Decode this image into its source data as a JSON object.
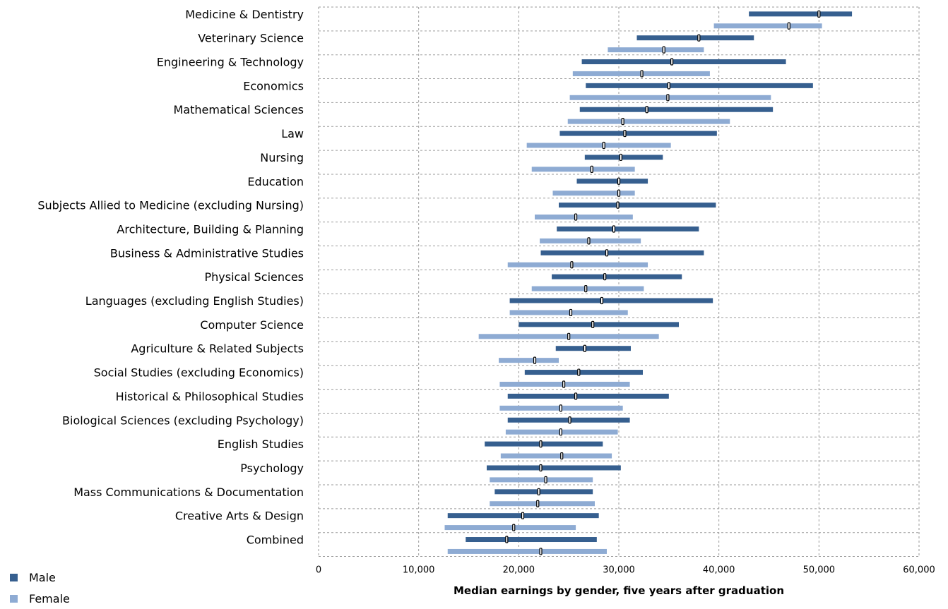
{
  "chart_data": {
    "type": "range-bar",
    "xlabel": "Median earnings by gender, five years after graduation",
    "xlim": [
      0,
      60000
    ],
    "xticks": [
      0,
      10000,
      20000,
      30000,
      40000,
      50000,
      60000
    ],
    "xtick_labels": [
      "0",
      "10,000",
      "20,000",
      "30,000",
      "40,000",
      "50,000",
      "60,000"
    ],
    "grid": true,
    "legend_position": "bottom-left",
    "series": [
      {
        "name": "Male",
        "color": "#365f8f"
      },
      {
        "name": "Female",
        "color": "#8eabd3"
      }
    ],
    "categories": [
      {
        "label": "Medicine & Dentistry",
        "male": {
          "low": 43000,
          "median": 50000,
          "high": 53300
        },
        "female": {
          "low": 39500,
          "median": 47000,
          "high": 50300
        }
      },
      {
        "label": "Veterinary Science",
        "male": {
          "low": 31800,
          "median": 38000,
          "high": 43500
        },
        "female": {
          "low": 28900,
          "median": 34500,
          "high": 38500
        }
      },
      {
        "label": "Engineering & Technology",
        "male": {
          "low": 26300,
          "median": 35300,
          "high": 46700
        },
        "female": {
          "low": 25400,
          "median": 32300,
          "high": 39100
        }
      },
      {
        "label": "Economics",
        "male": {
          "low": 26700,
          "median": 35000,
          "high": 49400
        },
        "female": {
          "low": 25100,
          "median": 34900,
          "high": 45200
        }
      },
      {
        "label": "Mathematical Sciences",
        "male": {
          "low": 26100,
          "median": 32800,
          "high": 45400
        },
        "female": {
          "low": 24900,
          "median": 30400,
          "high": 41100
        }
      },
      {
        "label": "Law",
        "male": {
          "low": 24100,
          "median": 30600,
          "high": 39800
        },
        "female": {
          "low": 20800,
          "median": 28500,
          "high": 35200
        }
      },
      {
        "label": "Nursing",
        "male": {
          "low": 26600,
          "median": 30200,
          "high": 34400
        },
        "female": {
          "low": 21300,
          "median": 27300,
          "high": 31600
        }
      },
      {
        "label": "Education",
        "male": {
          "low": 25800,
          "median": 30000,
          "high": 32900
        },
        "female": {
          "low": 23400,
          "median": 30000,
          "high": 31600
        }
      },
      {
        "label": "Subjects Allied to Medicine (excluding Nursing)",
        "male": {
          "low": 24000,
          "median": 29900,
          "high": 39700
        },
        "female": {
          "low": 21600,
          "median": 25700,
          "high": 31400
        }
      },
      {
        "label": "Architecture, Building & Planning",
        "male": {
          "low": 23800,
          "median": 29500,
          "high": 38000
        },
        "female": {
          "low": 22100,
          "median": 27000,
          "high": 32200
        }
      },
      {
        "label": "Business & Administrative Studies",
        "male": {
          "low": 22200,
          "median": 28800,
          "high": 38500
        },
        "female": {
          "low": 18900,
          "median": 25300,
          "high": 32900
        }
      },
      {
        "label": "Physical Sciences",
        "male": {
          "low": 23300,
          "median": 28600,
          "high": 36300
        },
        "female": {
          "low": 21300,
          "median": 26700,
          "high": 32500
        }
      },
      {
        "label": "Languages (excluding English Studies)",
        "male": {
          "low": 19100,
          "median": 28300,
          "high": 39400
        },
        "female": {
          "low": 19100,
          "median": 25200,
          "high": 30900
        }
      },
      {
        "label": "Computer Science",
        "male": {
          "low": 20000,
          "median": 27400,
          "high": 36000
        },
        "female": {
          "low": 16000,
          "median": 25000,
          "high": 34000
        }
      },
      {
        "label": "Agriculture & Related Subjects",
        "male": {
          "low": 23700,
          "median": 26600,
          "high": 31200
        },
        "female": {
          "low": 18000,
          "median": 21600,
          "high": 24000
        }
      },
      {
        "label": "Social Studies (excluding Economics)",
        "male": {
          "low": 20600,
          "median": 26000,
          "high": 32400
        },
        "female": {
          "low": 18100,
          "median": 24500,
          "high": 31100
        }
      },
      {
        "label": "Historical & Philosophical Studies",
        "male": {
          "low": 18900,
          "median": 25700,
          "high": 35000
        },
        "female": {
          "low": 18100,
          "median": 24200,
          "high": 30400
        }
      },
      {
        "label": "Biological Sciences (excluding Psychology)",
        "male": {
          "low": 18900,
          "median": 25100,
          "high": 31100
        },
        "female": {
          "low": 18700,
          "median": 24200,
          "high": 29900
        }
      },
      {
        "label": "English Studies",
        "male": {
          "low": 16600,
          "median": 22200,
          "high": 28400
        },
        "female": {
          "low": 18200,
          "median": 24300,
          "high": 29300
        }
      },
      {
        "label": "Psychology",
        "male": {
          "low": 16800,
          "median": 22200,
          "high": 30200
        },
        "female": {
          "low": 17100,
          "median": 22700,
          "high": 27400
        }
      },
      {
        "label": "Mass Communications & Documentation",
        "male": {
          "low": 17600,
          "median": 22000,
          "high": 27400
        },
        "female": {
          "low": 17100,
          "median": 21900,
          "high": 27600
        }
      },
      {
        "label": "Creative Arts & Design",
        "male": {
          "low": 12900,
          "median": 20400,
          "high": 28000
        },
        "female": {
          "low": 12600,
          "median": 19500,
          "high": 25700
        }
      },
      {
        "label": "Combined",
        "male": {
          "low": 14700,
          "median": 18800,
          "high": 27800
        },
        "female": {
          "low": 12900,
          "median": 22200,
          "high": 28800
        }
      }
    ]
  }
}
